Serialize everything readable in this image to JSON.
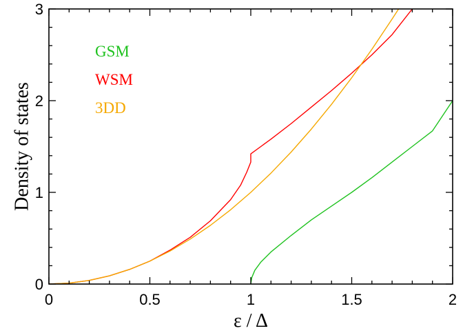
{
  "chart_data": {
    "type": "line",
    "xlabel": "ε / Δ",
    "ylabel": "Density of states",
    "xlim": [
      0,
      2
    ],
    "ylim": [
      0,
      3
    ],
    "xticks": [
      {
        "value": 0,
        "label": "0"
      },
      {
        "value": 0.5,
        "label": "0.5"
      },
      {
        "value": 1,
        "label": "1"
      },
      {
        "value": 1.5,
        "label": "1.5"
      },
      {
        "value": 2,
        "label": "2"
      }
    ],
    "yticks": [
      {
        "value": 0,
        "label": "0"
      },
      {
        "value": 1,
        "label": "1"
      },
      {
        "value": 2,
        "label": "2"
      },
      {
        "value": 3,
        "label": "3"
      }
    ],
    "grid": false,
    "legend_position": "top-left",
    "series": [
      {
        "name": "GSM",
        "color": "#1fc21f",
        "x": [
          1.0,
          1.005,
          1.02,
          1.05,
          1.1,
          1.2,
          1.3,
          1.4,
          1.5,
          1.6,
          1.7,
          1.8,
          1.9,
          2.0
        ],
        "y": [
          0.0,
          0.07,
          0.15,
          0.24,
          0.35,
          0.53,
          0.7,
          0.85,
          1.0,
          1.16,
          1.33,
          1.5,
          1.67,
          2.0
        ]
      },
      {
        "name": "WSM",
        "color": "#ff0000",
        "x": [
          0.0,
          0.1,
          0.2,
          0.3,
          0.4,
          0.5,
          0.6,
          0.7,
          0.8,
          0.9,
          0.95,
          0.98,
          1.0,
          1.0,
          1.1,
          1.2,
          1.3,
          1.4,
          1.5,
          1.6,
          1.7,
          1.8
        ],
        "y": [
          0.0,
          0.01,
          0.04,
          0.09,
          0.16,
          0.25,
          0.37,
          0.51,
          0.69,
          0.92,
          1.08,
          1.22,
          1.33,
          1.42,
          1.58,
          1.75,
          1.93,
          2.11,
          2.3,
          2.5,
          2.72,
          3.0
        ]
      },
      {
        "name": "3DD",
        "color": "#f5a800",
        "x": [
          0.0,
          0.1,
          0.2,
          0.3,
          0.4,
          0.5,
          0.6,
          0.7,
          0.8,
          0.9,
          1.0,
          1.1,
          1.2,
          1.3,
          1.4,
          1.5,
          1.6,
          1.7,
          1.75
        ],
        "y": [
          0.0,
          0.01,
          0.04,
          0.09,
          0.16,
          0.25,
          0.36,
          0.49,
          0.64,
          0.81,
          1.0,
          1.21,
          1.44,
          1.69,
          1.96,
          2.25,
          2.56,
          2.89,
          3.06
        ]
      }
    ]
  }
}
